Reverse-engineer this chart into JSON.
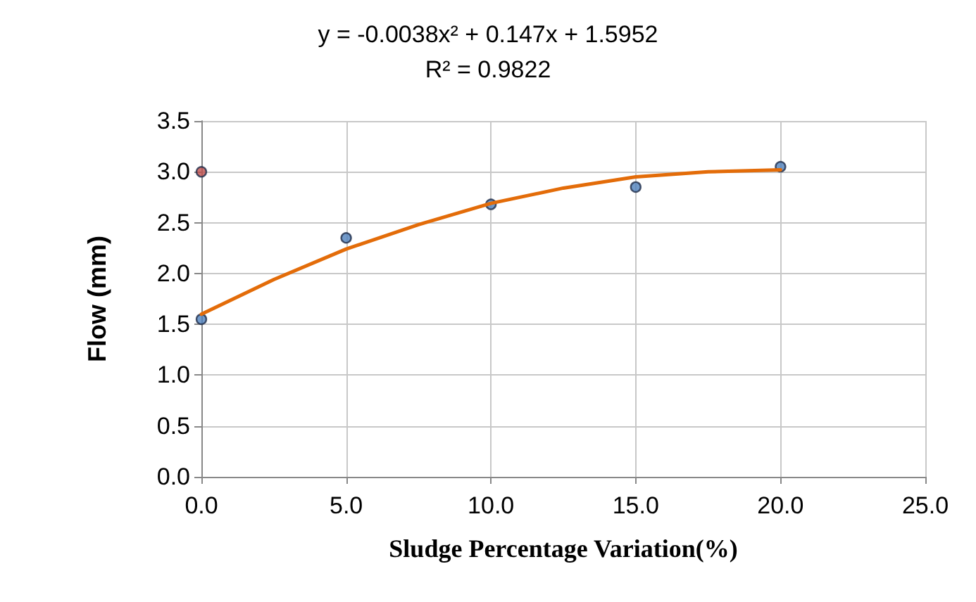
{
  "chart_data": {
    "type": "scatter",
    "xlabel": "Sludge Percentage Variation(%)",
    "ylabel": "Flow (mm)",
    "annotations": [
      "y = -0.0038x² + 0.147x + 1.5952",
      "R² = 0.9822"
    ],
    "series": [
      {
        "color": "#4f81bd",
        "x": [
          0,
          5,
          10,
          15,
          20
        ],
        "values": [
          1.55,
          2.35,
          2.68,
          2.85,
          3.05
        ],
        "marker": "circle"
      },
      {
        "color": "#c0504d",
        "x": [
          0
        ],
        "values": [
          3.0
        ],
        "marker": "circle"
      },
      {
        "type": "line",
        "color": "#e36c09",
        "x": [
          0,
          2.5,
          5,
          7.5,
          10,
          12.5,
          15,
          17.5,
          20
        ],
        "values": [
          1.6,
          1.94,
          2.24,
          2.48,
          2.69,
          2.84,
          2.95,
          3.0,
          3.02
        ],
        "marker": "none",
        "line_style": "solid"
      }
    ],
    "xlim": [
      0,
      25
    ],
    "xticks": [
      {
        "value": 0,
        "label": "0.0"
      },
      {
        "value": 5,
        "label": "5.0"
      },
      {
        "value": 10,
        "label": "10.0"
      },
      {
        "value": 15,
        "label": "15.0"
      },
      {
        "value": 20,
        "label": "20.0"
      },
      {
        "value": 25,
        "label": "25.0"
      }
    ],
    "ylim": [
      0,
      3.5
    ],
    "yticks": [
      {
        "value": 0,
        "label": "0.0"
      },
      {
        "value": 0.5,
        "label": "0.5"
      },
      {
        "value": 1,
        "label": "1.0"
      },
      {
        "value": 1.5,
        "label": "1.5"
      },
      {
        "value": 2,
        "label": "2.0"
      },
      {
        "value": 2.5,
        "label": "2.5"
      },
      {
        "value": 3,
        "label": "3.0"
      },
      {
        "value": 3.5,
        "label": "3.5"
      }
    ],
    "grid": true
  }
}
